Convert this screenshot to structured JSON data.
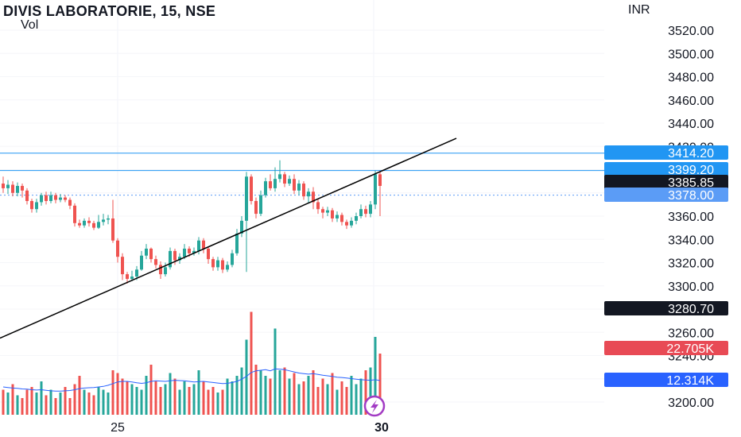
{
  "header": {
    "title": "DIVIS LABORATORIE, 15, NSE",
    "volume_label": "Vol",
    "currency": "INR"
  },
  "chart_data": {
    "type": "candlestick",
    "y_axis": {
      "ticks": [
        "3200.00",
        "3220.00",
        "3240.00",
        "3260.00",
        "3280.00",
        "3300.00",
        "3320.00",
        "3340.00",
        "3360.00",
        "3380.00",
        "3400.00",
        "3420.00",
        "3440.00",
        "3460.00",
        "3480.00",
        "3500.00",
        "3520.00"
      ],
      "range": [
        3196,
        3540
      ]
    },
    "x_axis": {
      "ticks": [
        "25",
        "30"
      ],
      "bold_tick": "30"
    },
    "price_labels": [
      {
        "name": "resistance-upper",
        "text": "3414.20",
        "value": 3414.2,
        "color": "#2196f3"
      },
      {
        "name": "resistance-lower",
        "text": "3399.20",
        "value": 3399.2,
        "color": "#2196f3"
      },
      {
        "name": "last-price",
        "text": "3385.85",
        "value": 3385.85,
        "color": "#131722"
      },
      {
        "name": "dotted-level",
        "text": "3378.00",
        "value": 3378.0,
        "color": "#5b9cf6"
      },
      {
        "name": "reference-price",
        "text": "3280.70",
        "value": 3280.7,
        "color": "#131722"
      },
      {
        "name": "volume-current",
        "text": "22.705K",
        "value": 22705,
        "color": "#e84a55"
      },
      {
        "name": "volume-ma",
        "text": "12.314K",
        "value": 12314,
        "color": "#2962ff"
      }
    ],
    "horizontal_lines": [
      {
        "value": 3414.2,
        "color": "#2196f3",
        "style": "solid"
      },
      {
        "value": 3399.2,
        "color": "#2196f3",
        "style": "solid"
      },
      {
        "value": 3378.0,
        "color": "#5b9cf6",
        "style": "dotted"
      }
    ],
    "trendline": {
      "from": [
        0,
        3255
      ],
      "to": [
        95,
        3427
      ],
      "color": "#000000"
    },
    "colors": {
      "up": "#26a69a",
      "down": "#ef5350",
      "volume_ma": "#2962ff"
    },
    "candles": [
      [
        3388,
        3384,
        3394,
        3380
      ],
      [
        3384,
        3387,
        3391,
        3379
      ],
      [
        3387,
        3380,
        3390,
        3377
      ],
      [
        3380,
        3386,
        3389,
        3377
      ],
      [
        3386,
        3382,
        3388,
        3376
      ],
      [
        3382,
        3373,
        3384,
        3370
      ],
      [
        3373,
        3366,
        3375,
        3363
      ],
      [
        3366,
        3372,
        3375,
        3363
      ],
      [
        3372,
        3378,
        3380,
        3369
      ],
      [
        3378,
        3373,
        3381,
        3370
      ],
      [
        3373,
        3378,
        3381,
        3371
      ],
      [
        3378,
        3374,
        3380,
        3371
      ],
      [
        3374,
        3376,
        3379,
        3372
      ],
      [
        3376,
        3374,
        3378,
        3372
      ],
      [
        3374,
        3369,
        3376,
        3366
      ],
      [
        3369,
        3354,
        3371,
        3351
      ],
      [
        3354,
        3352,
        3357,
        3350
      ],
      [
        3352,
        3356,
        3358,
        3350
      ],
      [
        3356,
        3354,
        3359,
        3351
      ],
      [
        3354,
        3350,
        3356,
        3348
      ],
      [
        3350,
        3355,
        3361,
        3349
      ],
      [
        3355,
        3357,
        3362,
        3352
      ],
      [
        3357,
        3358,
        3361,
        3353
      ],
      [
        3358,
        3339,
        3374,
        3337
      ],
      [
        3339,
        3325,
        3341,
        3320
      ],
      [
        3325,
        3310,
        3328,
        3305
      ],
      [
        3310,
        3306,
        3312,
        3302
      ],
      [
        3306,
        3308,
        3313,
        3304
      ],
      [
        3308,
        3314,
        3317,
        3305
      ],
      [
        3314,
        3326,
        3330,
        3313
      ],
      [
        3326,
        3332,
        3336,
        3323
      ],
      [
        3332,
        3323,
        3333,
        3320
      ],
      [
        3323,
        3318,
        3326,
        3315
      ],
      [
        3318,
        3310,
        3321,
        3306
      ],
      [
        3310,
        3316,
        3320,
        3308
      ],
      [
        3316,
        3330,
        3333,
        3314
      ],
      [
        3330,
        3322,
        3332,
        3318
      ],
      [
        3322,
        3325,
        3328,
        3319
      ],
      [
        3325,
        3332,
        3336,
        3323
      ],
      [
        3332,
        3328,
        3334,
        3325
      ],
      [
        3328,
        3330,
        3333,
        3326
      ],
      [
        3330,
        3339,
        3342,
        3327
      ],
      [
        3339,
        3332,
        3341,
        3328
      ],
      [
        3332,
        3323,
        3334,
        3319
      ],
      [
        3323,
        3316,
        3325,
        3313
      ],
      [
        3316,
        3322,
        3325,
        3313
      ],
      [
        3322,
        3314,
        3324,
        3311
      ],
      [
        3314,
        3318,
        3321,
        3312
      ],
      [
        3318,
        3328,
        3331,
        3316
      ],
      [
        3328,
        3345,
        3349,
        3326
      ],
      [
        3345,
        3356,
        3360,
        3342
      ],
      [
        3356,
        3394,
        3398,
        3312
      ],
      [
        3394,
        3373,
        3396,
        3370
      ],
      [
        3373,
        3362,
        3376,
        3358
      ],
      [
        3362,
        3378,
        3382,
        3360
      ],
      [
        3378,
        3390,
        3393,
        3376
      ],
      [
        3390,
        3384,
        3396,
        3382
      ],
      [
        3384,
        3392,
        3402,
        3381
      ],
      [
        3392,
        3396,
        3408,
        3389
      ],
      [
        3396,
        3388,
        3398,
        3385
      ],
      [
        3388,
        3392,
        3395,
        3386
      ],
      [
        3392,
        3382,
        3396,
        3379
      ],
      [
        3382,
        3388,
        3391,
        3378
      ],
      [
        3388,
        3377,
        3390,
        3374
      ],
      [
        3377,
        3381,
        3384,
        3371
      ],
      [
        3381,
        3372,
        3385,
        3366
      ],
      [
        3372,
        3366,
        3375,
        3362
      ],
      [
        3366,
        3363,
        3368,
        3358
      ],
      [
        3363,
        3365,
        3368,
        3360
      ],
      [
        3365,
        3358,
        3367,
        3355
      ],
      [
        3358,
        3361,
        3364,
        3355
      ],
      [
        3361,
        3355,
        3363,
        3352
      ],
      [
        3355,
        3352,
        3357,
        3349
      ],
      [
        3352,
        3356,
        3359,
        3350
      ],
      [
        3356,
        3360,
        3363,
        3353
      ],
      [
        3360,
        3366,
        3370,
        3358
      ],
      [
        3366,
        3362,
        3369,
        3359
      ],
      [
        3362,
        3370,
        3373,
        3359
      ],
      [
        3370,
        3396,
        3399,
        3366
      ],
      [
        3396,
        3386,
        3399,
        3360
      ]
    ],
    "volumes": [
      9,
      8,
      11,
      7,
      6,
      9,
      10,
      8,
      12,
      7,
      9,
      6,
      8,
      10,
      6,
      11,
      14,
      9,
      8,
      7,
      10,
      9,
      8,
      16,
      15,
      13,
      12,
      11,
      10,
      9,
      14,
      18,
      12,
      10,
      11,
      15,
      13,
      9,
      12,
      10,
      11,
      16,
      12,
      9,
      10,
      8,
      9,
      13,
      12,
      14,
      17,
      27,
      37,
      18,
      16,
      14,
      13,
      31,
      16,
      17,
      13,
      15,
      11,
      12,
      14,
      16,
      10,
      13,
      11,
      15,
      9,
      12,
      10,
      14,
      11,
      13,
      16,
      17,
      28,
      22
    ],
    "volume_ma": [
      10,
      9.8,
      9.6,
      9.5,
      9.3,
      9.2,
      9.0,
      8.9,
      9.0,
      8.8,
      8.6,
      8.5,
      8.5,
      8.6,
      8.7,
      9.0,
      9.4,
      9.6,
      9.7,
      9.8,
      10,
      10.2,
      10.6,
      11.2,
      11.8,
      12.0,
      12.0,
      11.8,
      11.5,
      11.3,
      11.5,
      12,
      12.2,
      12.1,
      12.0,
      12.2,
      12.4,
      12.3,
      12.2,
      12.0,
      11.8,
      11.9,
      12.0,
      11.8,
      11.6,
      11.4,
      11.2,
      11.3,
      11.6,
      12.0,
      12.8,
      13.8,
      15.2,
      15.8,
      16.0,
      16.2,
      15.8,
      16.5,
      16.4,
      16.2,
      15.8,
      15.4,
      15.0,
      14.8,
      14.6,
      14.8,
      14.5,
      14.2,
      14.0,
      13.8,
      13.5,
      13.4,
      13.2,
      13.0,
      12.8,
      12.6,
      12.5,
      12.4,
      12.6,
      12.3
    ],
    "badge": {
      "icon": "lightning-icon"
    }
  }
}
